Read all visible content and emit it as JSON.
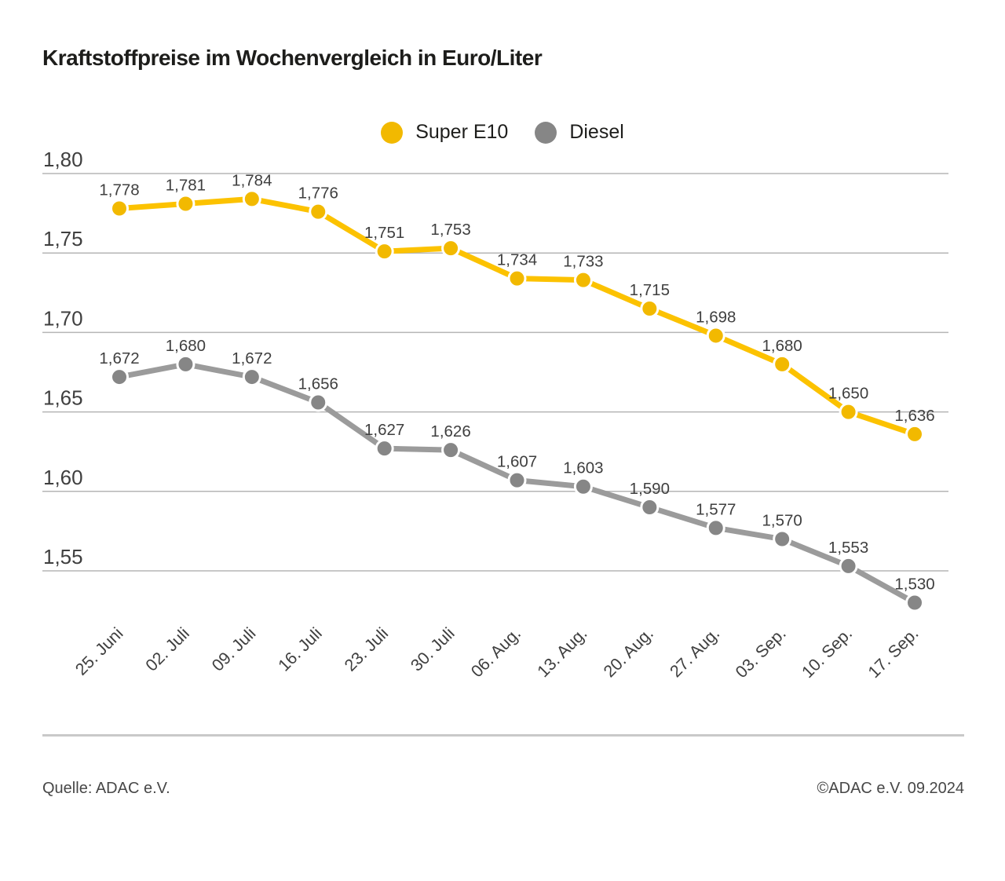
{
  "title": "Kraftstoffpreise im Wochenvergleich in Euro/Liter",
  "footer": {
    "source": "Quelle: ADAC e.V.",
    "copyright": "©ADAC e.V. 09.2024"
  },
  "colors": {
    "grid": "#b5b5b5",
    "axis_text": "#3f3f3f",
    "data_label_text": "#3f3f3f",
    "title_text": "#1d1d1b"
  },
  "chart_data": {
    "type": "line",
    "title": "Kraftstoffpreise im Wochenvergleich in Euro/Liter",
    "ylabel": "Euro/Liter",
    "xlabel": "",
    "grid": true,
    "legend_position": "top-center",
    "decimal_separator": ",",
    "categories": [
      "25. Juni",
      "02. Juli",
      "09. Juli",
      "16. Juli",
      "23. Juli",
      "30. Juli",
      "06. Aug.",
      "13. Aug.",
      "20. Aug.",
      "27. Aug.",
      "03. Sep.",
      "10. Sep.",
      "17. Sep."
    ],
    "yticks": [
      1.8,
      1.75,
      1.7,
      1.65,
      1.6,
      1.55
    ],
    "ylim": [
      1.52,
      1.81
    ],
    "series": [
      {
        "name": "Super E10",
        "line_color": "#FCC200",
        "point_color": "#F2B900",
        "values": [
          1.778,
          1.781,
          1.784,
          1.776,
          1.751,
          1.753,
          1.734,
          1.733,
          1.715,
          1.698,
          1.68,
          1.65,
          1.636
        ]
      },
      {
        "name": "Diesel",
        "line_color": "#9B9B9B",
        "point_color": "#868686",
        "values": [
          1.672,
          1.68,
          1.672,
          1.656,
          1.627,
          1.626,
          1.607,
          1.603,
          1.59,
          1.577,
          1.57,
          1.553,
          1.53
        ]
      }
    ]
  }
}
